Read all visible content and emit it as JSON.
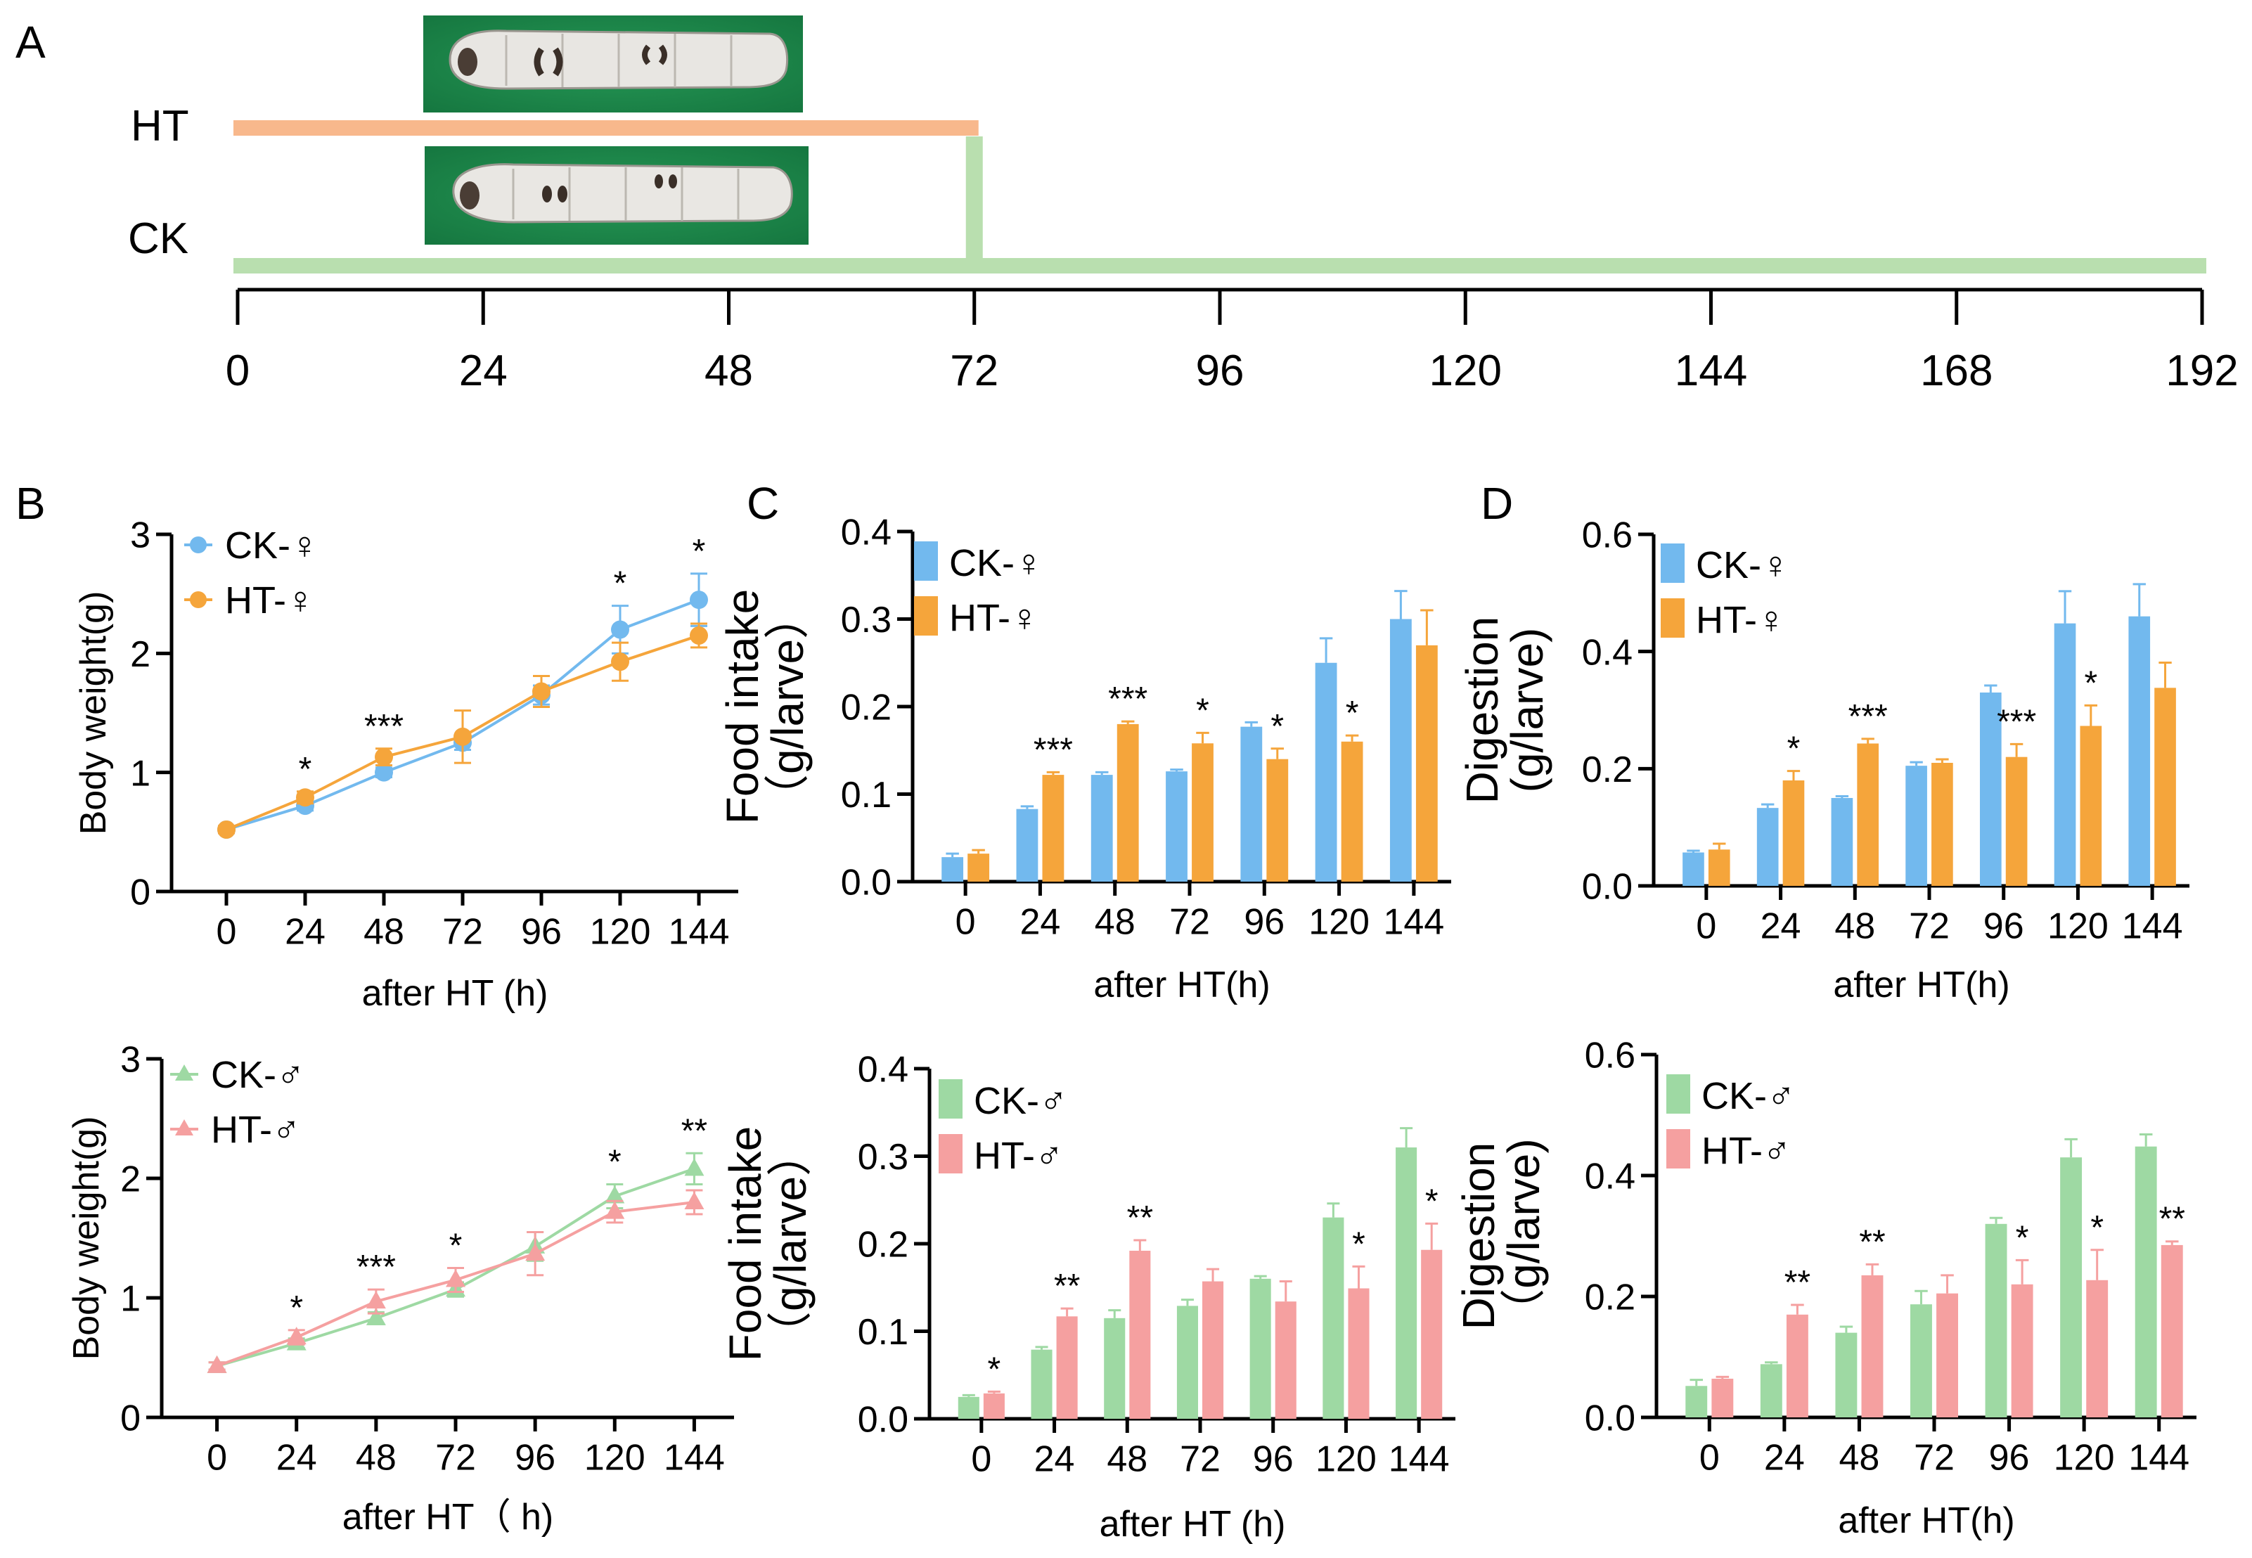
{
  "panel_labels": [
    "A",
    "B",
    "C",
    "D"
  ],
  "timeline": {
    "ticks": [
      "0",
      "24",
      "48",
      "72",
      "96",
      "120",
      "144",
      "168",
      "192"
    ],
    "tick_values": [
      0,
      24,
      48,
      72,
      96,
      120,
      144,
      168,
      192
    ],
    "groups": [
      {
        "label": "HT",
        "start": 0,
        "end": 72,
        "color": "#f8b88c"
      },
      {
        "label": "CK",
        "start": 0,
        "end": 192,
        "color": "#b9dfaf"
      }
    ],
    "transfer_at": 72
  },
  "chart_data": [
    {
      "panel": "B",
      "id": "b-female",
      "type": "line",
      "xlabel": "after HT (h)",
      "ylabel": "Body weight(g)",
      "categories": [
        "0",
        "24",
        "48",
        "72",
        "96",
        "120",
        "144"
      ],
      "ylim": [
        0,
        3
      ],
      "yticks": [
        "0",
        "1",
        "2",
        "3"
      ],
      "ytick_values": [
        0,
        1,
        2,
        3
      ],
      "legend_position": "top-left",
      "marker": "circle",
      "series": [
        {
          "name": "CK-♀",
          "color": "#72b9ee",
          "values": [
            0.52,
            0.72,
            1.0,
            1.25,
            1.65,
            2.2,
            2.45
          ],
          "errors": [
            0.03,
            0.04,
            0.04,
            0.06,
            0.08,
            0.2,
            0.22
          ]
        },
        {
          "name": "HT-♀",
          "color": "#f5a53b",
          "values": [
            0.52,
            0.79,
            1.13,
            1.3,
            1.68,
            1.93,
            2.15
          ],
          "errors": [
            0.03,
            0.05,
            0.07,
            0.22,
            0.13,
            0.16,
            0.1
          ]
        }
      ],
      "annotations": [
        {
          "x": "24",
          "text": "*"
        },
        {
          "x": "48",
          "text": "***"
        },
        {
          "x": "120",
          "text": "*"
        },
        {
          "x": "144",
          "text": "*"
        }
      ]
    },
    {
      "panel": "B",
      "id": "b-male",
      "type": "line",
      "xlabel": "after HT（ h)",
      "ylabel": "Body weight(g)",
      "categories": [
        "0",
        "24",
        "48",
        "72",
        "96",
        "120",
        "144"
      ],
      "ylim": [
        0,
        3
      ],
      "yticks": [
        "0",
        "1",
        "2",
        "3"
      ],
      "ytick_values": [
        0,
        1,
        2,
        3
      ],
      "legend_position": "top-left",
      "marker": "triangle",
      "series": [
        {
          "name": "CK-♂",
          "color": "#9ed9a3",
          "values": [
            0.43,
            0.62,
            0.83,
            1.07,
            1.43,
            1.85,
            2.08
          ],
          "errors": [
            0.03,
            0.04,
            0.05,
            0.06,
            0.12,
            0.1,
            0.13
          ]
        },
        {
          "name": "HT-♂",
          "color": "#f5a0a0",
          "values": [
            0.43,
            0.67,
            0.97,
            1.15,
            1.37,
            1.72,
            1.8
          ],
          "errors": [
            0.03,
            0.06,
            0.1,
            0.1,
            0.18,
            0.09,
            0.1
          ]
        }
      ],
      "annotations": [
        {
          "x": "24",
          "text": "*"
        },
        {
          "x": "48",
          "text": "***"
        },
        {
          "x": "72",
          "text": "*"
        },
        {
          "x": "120",
          "text": "*"
        },
        {
          "x": "144",
          "text": "**"
        }
      ]
    },
    {
      "panel": "C",
      "id": "c-female",
      "type": "bar",
      "xlabel": "after HT(h)",
      "ylabel": "Food intake\n（g/larve）",
      "categories": [
        "0",
        "24",
        "48",
        "72",
        "96",
        "120",
        "144"
      ],
      "ylim": [
        0,
        0.4
      ],
      "yticks": [
        "0.0",
        "0.1",
        "0.2",
        "0.3",
        "0.4"
      ],
      "ytick_values": [
        0,
        0.1,
        0.2,
        0.3,
        0.4
      ],
      "legend_position": "top-left",
      "series": [
        {
          "name": "CK-♀",
          "color": "#72b9ee",
          "values": [
            0.028,
            0.083,
            0.122,
            0.126,
            0.177,
            0.25,
            0.3
          ],
          "errors": [
            0.004,
            0.003,
            0.003,
            0.002,
            0.005,
            0.028,
            0.032
          ]
        },
        {
          "name": "HT-♀",
          "color": "#f5a53b",
          "values": [
            0.032,
            0.122,
            0.18,
            0.158,
            0.14,
            0.16,
            0.27
          ],
          "errors": [
            0.004,
            0.003,
            0.003,
            0.012,
            0.012,
            0.007,
            0.04
          ]
        }
      ],
      "annotations": [
        {
          "x": "24",
          "text": "***"
        },
        {
          "x": "48",
          "text": "***"
        },
        {
          "x": "72",
          "text": "*"
        },
        {
          "x": "96",
          "text": "*"
        },
        {
          "x": "120",
          "text": "*"
        }
      ]
    },
    {
      "panel": "C",
      "id": "c-male",
      "type": "bar",
      "xlabel": "after HT (h)",
      "ylabel": "Food intake\n（g/larve）",
      "categories": [
        "0",
        "24",
        "48",
        "72",
        "96",
        "120",
        "144"
      ],
      "ylim": [
        0,
        0.4
      ],
      "yticks": [
        "0.0",
        "0.1",
        "0.2",
        "0.3",
        "0.4"
      ],
      "ytick_values": [
        0,
        0.1,
        0.2,
        0.3,
        0.4
      ],
      "legend_position": "top-left",
      "series": [
        {
          "name": "CK-♂",
          "color": "#9ed9a3",
          "values": [
            0.025,
            0.079,
            0.115,
            0.129,
            0.16,
            0.23,
            0.31
          ],
          "errors": [
            0.002,
            0.003,
            0.009,
            0.007,
            0.003,
            0.016,
            0.022
          ]
        },
        {
          "name": "HT-♂",
          "color": "#f5a0a0",
          "values": [
            0.029,
            0.117,
            0.192,
            0.157,
            0.134,
            0.149,
            0.193
          ],
          "errors": [
            0.002,
            0.009,
            0.012,
            0.014,
            0.023,
            0.025,
            0.03
          ]
        }
      ],
      "annotations": [
        {
          "x": "0",
          "text": "*"
        },
        {
          "x": "24",
          "text": "**"
        },
        {
          "x": "48",
          "text": "**"
        },
        {
          "x": "120",
          "text": "*"
        },
        {
          "x": "144",
          "text": "*"
        }
      ]
    },
    {
      "panel": "D",
      "id": "d-female",
      "type": "bar",
      "xlabel": "after HT(h)",
      "ylabel": "Digestion\n(g/larve)",
      "categories": [
        "0",
        "24",
        "48",
        "72",
        "96",
        "120",
        "144"
      ],
      "ylim": [
        0,
        0.6
      ],
      "yticks": [
        "0.0",
        "0.2",
        "0.4",
        "0.6"
      ],
      "ytick_values": [
        0,
        0.2,
        0.4,
        0.6
      ],
      "legend_position": "top-left",
      "series": [
        {
          "name": "CK-♀",
          "color": "#72b9ee",
          "values": [
            0.057,
            0.133,
            0.15,
            0.205,
            0.33,
            0.448,
            0.46
          ],
          "errors": [
            0.003,
            0.006,
            0.003,
            0.006,
            0.012,
            0.055,
            0.055
          ]
        },
        {
          "name": "HT-♀",
          "color": "#f5a53b",
          "values": [
            0.062,
            0.18,
            0.243,
            0.21,
            0.22,
            0.273,
            0.338
          ],
          "errors": [
            0.01,
            0.016,
            0.008,
            0.006,
            0.022,
            0.035,
            0.043
          ]
        }
      ],
      "annotations": [
        {
          "x": "24",
          "text": "*"
        },
        {
          "x": "48",
          "text": "***"
        },
        {
          "x": "96",
          "text": "***"
        },
        {
          "x": "120",
          "text": "*"
        }
      ]
    },
    {
      "panel": "D",
      "id": "d-male",
      "type": "bar",
      "xlabel": "after HT(h)",
      "ylabel": "Digestion\n（g/larve)",
      "categories": [
        "0",
        "24",
        "48",
        "72",
        "96",
        "120",
        "144"
      ],
      "ylim": [
        0,
        0.6
      ],
      "yticks": [
        "0.0",
        "0.2",
        "0.4",
        "0.6"
      ],
      "ytick_values": [
        0,
        0.2,
        0.4,
        0.6
      ],
      "legend_position": "top-left",
      "series": [
        {
          "name": "CK-♂",
          "color": "#9ed9a3",
          "values": [
            0.052,
            0.088,
            0.14,
            0.187,
            0.32,
            0.43,
            0.448
          ],
          "errors": [
            0.01,
            0.003,
            0.01,
            0.022,
            0.01,
            0.03,
            0.02
          ]
        },
        {
          "name": "HT-♂",
          "color": "#f5a0a0",
          "values": [
            0.064,
            0.17,
            0.235,
            0.205,
            0.22,
            0.227,
            0.285
          ],
          "errors": [
            0.003,
            0.016,
            0.018,
            0.03,
            0.04,
            0.05,
            0.006
          ]
        }
      ],
      "annotations": [
        {
          "x": "24",
          "text": "**"
        },
        {
          "x": "48",
          "text": "**"
        },
        {
          "x": "96",
          "text": "*"
        },
        {
          "x": "120",
          "text": "*"
        },
        {
          "x": "144",
          "text": "**"
        }
      ]
    }
  ]
}
